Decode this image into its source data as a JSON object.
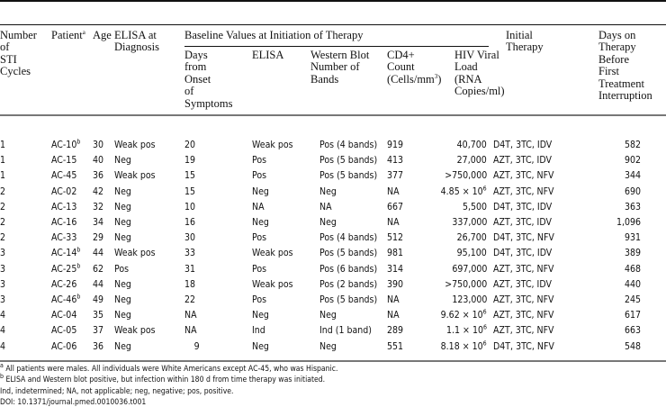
{
  "headers": {
    "cycles": "Number\nof\nSTI\nCycles",
    "patient": "Patient",
    "patient_sup": "a",
    "age": "Age",
    "elisa_dx": "ELISA at\nDiagnosis",
    "baseline": "Baseline Values at Initiation of Therapy",
    "days_onset": "Days\nfrom\nOnset\nof\nSymptoms",
    "elisa": "ELISA",
    "western": "Western Blot\nNumber of\nBands",
    "cd4": "CD4+\nCount\n(Cells/mm",
    "cd4_sup": "3",
    "cd4_end": ")",
    "hiv": "HIV Viral\nLoad\n(RNA\nCopies/ml)",
    "therapy": "Initial\nTherapy",
    "days_therapy": "Days on\nTherapy\nBefore\nFirst\nTreatment\nInterruption"
  },
  "rows": [
    [
      "1",
      "AC-10",
      "b",
      "30",
      "Weak pos",
      "20",
      "Weak pos",
      "Pos (4 bands)",
      "919",
      "40,700",
      "",
      "D4T, 3TC, IDV",
      "582"
    ],
    [
      "1",
      "AC-15",
      "",
      "40",
      "Neg",
      "19",
      "Pos",
      "Pos (5 bands)",
      "413",
      "27,000",
      "",
      "AZT, 3TC, IDV",
      "902"
    ],
    [
      "1",
      "AC-45",
      "",
      "36",
      "Weak pos",
      "15",
      "Pos",
      "Pos (5 bands)",
      "377",
      ">750,000",
      "",
      "AZT, 3TC, NFV",
      "344"
    ],
    [
      "2",
      "AC-02",
      "",
      "42",
      "Neg",
      "15",
      "Neg",
      "Neg",
      "NA",
      "4.85 × 10",
      "6",
      "AZT, 3TC, NFV",
      "690"
    ],
    [
      "2",
      "AC-13",
      "",
      "32",
      "Neg",
      "10",
      "NA",
      "NA",
      "667",
      "5,500",
      "",
      "D4T, 3TC, IDV",
      "363"
    ],
    [
      "2",
      "AC-16",
      "",
      "34",
      "Neg",
      "16",
      "Neg",
      "Neg",
      "NA",
      "337,000",
      "",
      "AZT, 3TC, IDV",
      "1,096"
    ],
    [
      "2",
      "AC-33",
      "",
      "29",
      "Neg",
      "30",
      "Pos",
      "Pos (4 bands)",
      "512",
      "26,700",
      "",
      "D4T, 3TC, NFV",
      "931"
    ],
    [
      "3",
      "AC-14",
      "b",
      "44",
      "Weak pos",
      "33",
      "Weak pos",
      "Pos (5 bands)",
      "981",
      "95,100",
      "",
      "D4T, 3TC, IDV",
      "389"
    ],
    [
      "3",
      "AC-25",
      "b",
      "62",
      "Pos",
      "31",
      "Pos",
      "Pos (6 bands)",
      "314",
      "697,000",
      "",
      "AZT, 3TC, NFV",
      "468"
    ],
    [
      "3",
      "AC-26",
      "",
      "44",
      "Neg",
      "18",
      "Weak pos",
      "Pos (2 bands)",
      "390",
      ">750,000",
      "",
      "AZT, 3TC, IDV",
      "440"
    ],
    [
      "3",
      "AC-46",
      "b",
      "49",
      "Neg",
      "22",
      "Pos",
      "Pos (5 bands)",
      "NA",
      "123,000",
      "",
      "AZT, 3TC, NFV",
      "245"
    ],
    [
      "4",
      "AC-04",
      "",
      "35",
      "Neg",
      "NA",
      "Neg",
      "Neg",
      "NA",
      "9.62 × 10",
      "6",
      "AZT, 3TC, NFV",
      "617"
    ],
    [
      "4",
      "AC-05",
      "",
      "37",
      "Weak pos",
      "NA",
      "Ind",
      "Ind (1 band)",
      "289",
      "1.1 × 10",
      "6",
      "AZT, 3TC, NFV",
      "663"
    ],
    [
      "4",
      "AC-06",
      "",
      "36",
      "Neg",
      "9",
      "Neg",
      "Neg",
      "551",
      "8.18 × 10",
      "6",
      "D4T, 3TC, NFV",
      "548"
    ]
  ],
  "footnotes": [
    {
      "sup": "a",
      "text": " All patients were males. All individuals were White Americans except AC-45, who was Hispanic."
    },
    {
      "sup": "b",
      "text": " ELISA and Western blot positive, but infection within 180 d from time therapy was initiated."
    },
    {
      "sup": "",
      "text": "Ind, indetermined; NA, not applicable; neg, negative; pos, positive."
    },
    {
      "sup": "",
      "text": "DOI: 10.1371/journal.pmed.0010036.t001"
    }
  ]
}
